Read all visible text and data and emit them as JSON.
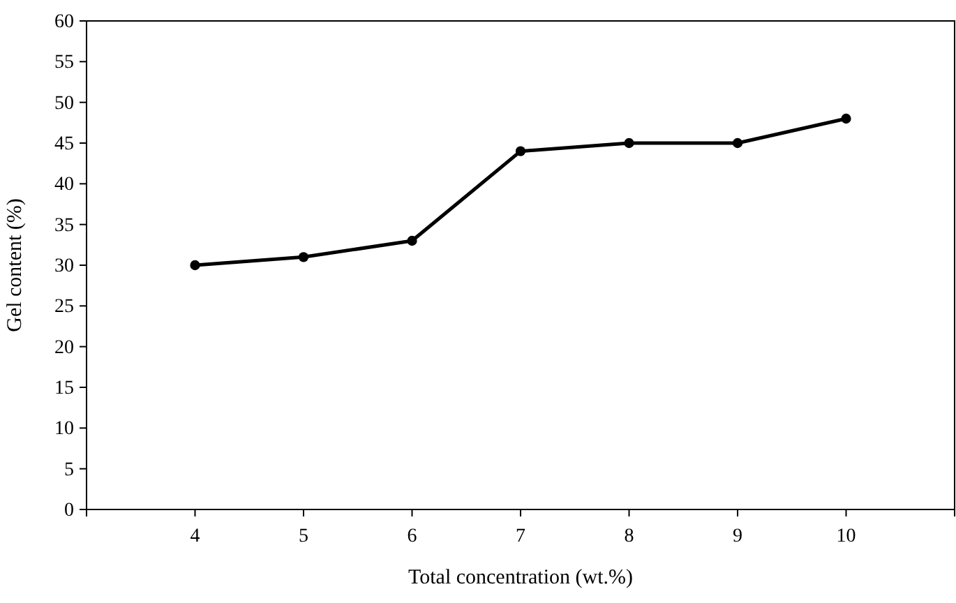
{
  "chart_data": {
    "type": "line",
    "xlabel": "Total concentration (wt.%)",
    "ylabel": "Gel content (%)",
    "x": [
      4,
      5,
      6,
      7,
      8,
      9,
      10
    ],
    "series": [
      {
        "color": "#000000",
        "values": [
          30,
          31,
          33,
          44,
          45,
          45,
          48
        ]
      }
    ],
    "xlim": [
      3,
      11
    ],
    "xticks": [
      4,
      5,
      6,
      7,
      8,
      9,
      10
    ],
    "ylim": [
      0,
      60
    ],
    "yticks": [
      0,
      5,
      10,
      15,
      20,
      25,
      30,
      35,
      40,
      45,
      50,
      55,
      60
    ],
    "grid": false,
    "marker": "circle",
    "line_style": "solid"
  }
}
